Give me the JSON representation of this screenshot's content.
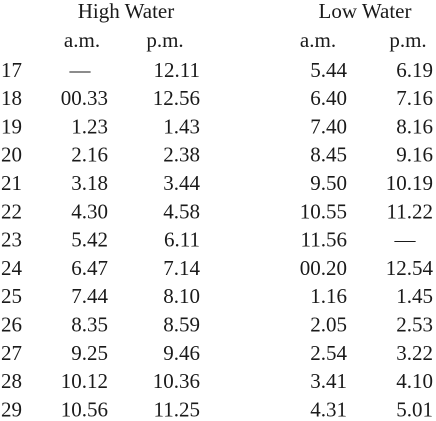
{
  "table": {
    "headers": [
      "High Water",
      "Low Water"
    ],
    "subheaders": [
      "a.m.",
      "p.m.",
      "a.m.",
      "p.m."
    ],
    "rows": [
      [
        "17",
        "—",
        "12.11",
        "5.44",
        "6.19"
      ],
      [
        "18",
        "00.33",
        "12.56",
        "6.40",
        "7.16"
      ],
      [
        "19",
        "1.23",
        "1.43",
        "7.40",
        "8.16"
      ],
      [
        "20",
        "2.16",
        "2.38",
        "8.45",
        "9.16"
      ],
      [
        "21",
        "3.18",
        "3.44",
        "9.50",
        "10.19"
      ],
      [
        "22",
        "4.30",
        "4.58",
        "10.55",
        "11.22"
      ],
      [
        "23",
        "5.42",
        "6.11",
        "11.56",
        "—"
      ],
      [
        "24",
        "6.47",
        "7.14",
        "00.20",
        "12.54"
      ],
      [
        "25",
        "7.44",
        "8.10",
        "1.16",
        "1.45"
      ],
      [
        "26",
        "8.35",
        "8.59",
        "2.05",
        "2.53"
      ],
      [
        "27",
        "9.25",
        "9.46",
        "2.54",
        "3.22"
      ],
      [
        "28",
        "10.12",
        "10.36",
        "3.41",
        "4.10"
      ],
      [
        "29",
        "10.56",
        "11.25",
        "4.31",
        "5.01"
      ]
    ]
  }
}
